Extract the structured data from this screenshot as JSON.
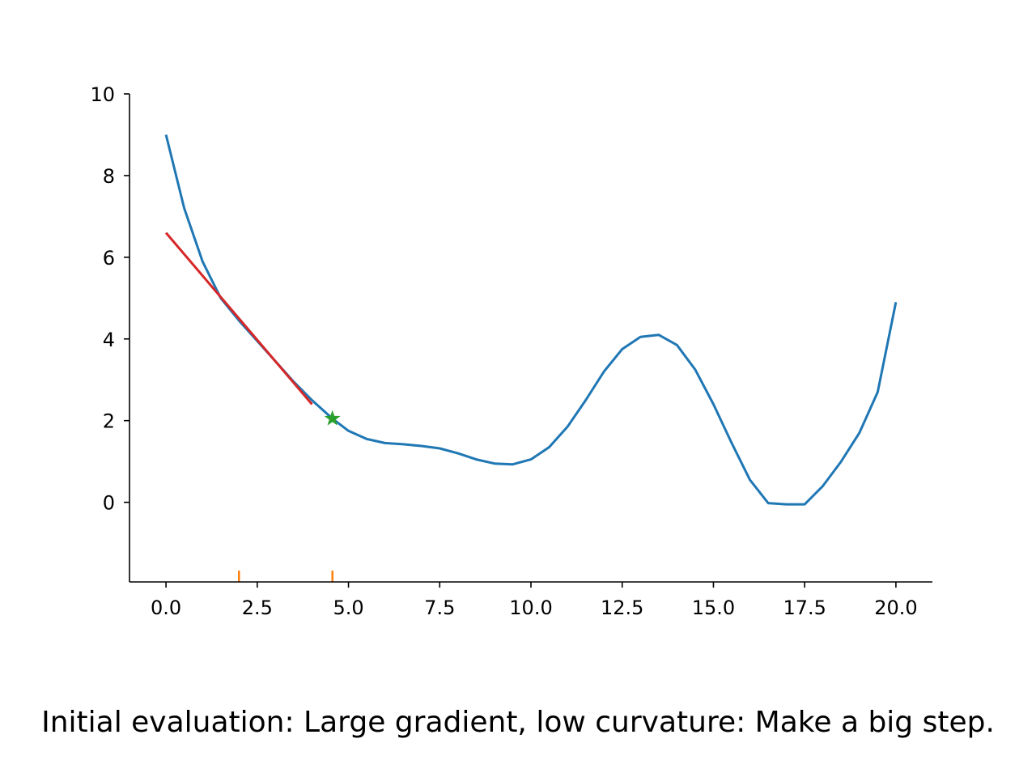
{
  "chart_data": {
    "type": "line",
    "xlim": [
      -1,
      21
    ],
    "ylim": [
      -1.95,
      10
    ],
    "x_ticks": [
      0,
      2.5,
      5,
      7.5,
      10,
      12.5,
      15,
      17.5,
      20
    ],
    "x_tick_labels": [
      "0.0",
      "2.5",
      "5.0",
      "7.5",
      "10.0",
      "12.5",
      "15.0",
      "17.5",
      "20.0"
    ],
    "y_ticks": [
      0,
      2,
      4,
      6,
      8,
      10
    ],
    "y_tick_labels": [
      "0",
      "2",
      "4",
      "6",
      "8",
      "10"
    ],
    "grid": false,
    "series": [
      {
        "color": "#1f77b4",
        "x": [
          0,
          0.5,
          1,
          1.5,
          2,
          2.5,
          3,
          3.5,
          4,
          4.56,
          5,
          5.5,
          6,
          6.5,
          7,
          7.5,
          8,
          8.5,
          9,
          9.5,
          10,
          10.5,
          11,
          11.5,
          12,
          12.5,
          13,
          13.5,
          14,
          14.5,
          15,
          15.5,
          16,
          16.5,
          17,
          17.5,
          18,
          18.5,
          19,
          19.5,
          20
        ],
        "y": [
          9.0,
          7.2,
          5.9,
          5.0,
          4.45,
          3.95,
          3.45,
          2.95,
          2.5,
          2.05,
          1.75,
          1.55,
          1.45,
          1.42,
          1.38,
          1.32,
          1.2,
          1.05,
          0.95,
          0.93,
          1.05,
          1.35,
          1.85,
          2.5,
          3.2,
          3.75,
          4.05,
          4.1,
          3.85,
          3.25,
          2.4,
          1.45,
          0.55,
          -0.02,
          -0.05,
          -0.05,
          0.4,
          1.0,
          1.7,
          2.7,
          4.9
        ]
      },
      {
        "color": "#d62728",
        "x": [
          0,
          4
        ],
        "y": [
          6.6,
          2.4
        ]
      }
    ],
    "markers": [
      {
        "shape": "star",
        "color": "#2ca02c",
        "x": 4.56,
        "y": 2.05
      }
    ],
    "rug": {
      "color": "#ff7f0e",
      "x": [
        2.0,
        4.56
      ]
    }
  },
  "caption": "Initial evaluation: Large gradient, low curvature: Make a big step."
}
